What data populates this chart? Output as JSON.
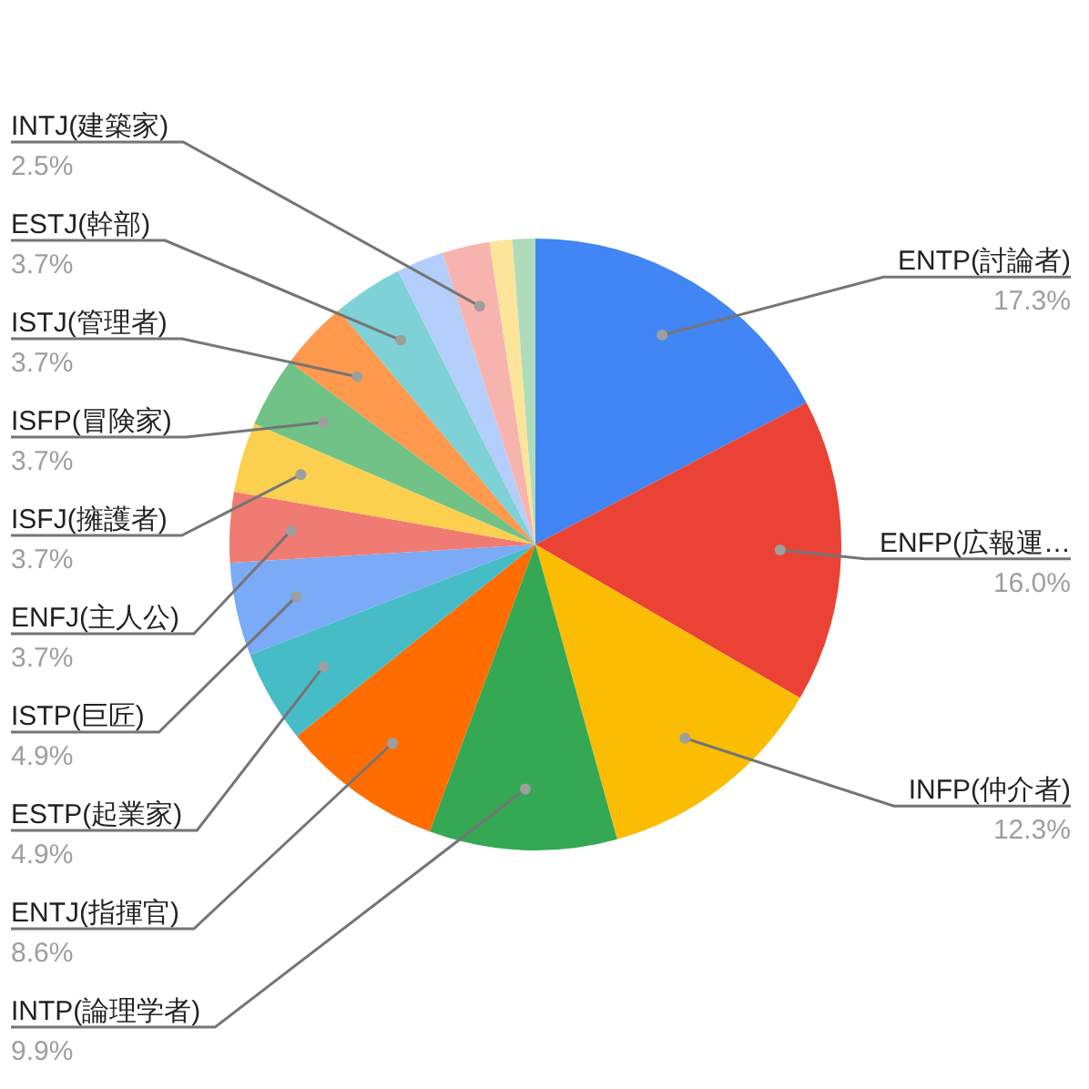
{
  "chart_data": {
    "type": "pie",
    "categories": [
      "ENTP(討論者)",
      "ENFP(広報運…",
      "INFP(仲介者)",
      "INTP(論理学者)",
      "ENTJ(指揮官)",
      "ESTP(起業家)",
      "ISTP(巨匠)",
      "ENFJ(主人公)",
      "ISFJ(擁護者)",
      "ISFP(冒険家)",
      "ISTJ(管理者)",
      "ESTJ(幹部)",
      null,
      "INTJ(建築家)",
      null,
      null
    ],
    "values": [
      17.3,
      16.0,
      12.3,
      9.9,
      8.6,
      4.9,
      4.9,
      3.7,
      3.7,
      3.7,
      3.7,
      3.7,
      2.5,
      2.5,
      1.2,
      1.2
    ],
    "colors": [
      "#4285f4",
      "#ea4335",
      "#fbbc04",
      "#34a853",
      "#ff6d01",
      "#46bdc6",
      "#7baaf7",
      "#f07b72",
      "#fcd04f",
      "#71c287",
      "#ff994d",
      "#7ed1d7",
      "#b3cefb",
      "#f7b4ae",
      "#fde49b",
      "#aedcba"
    ],
    "value_labels": [
      "17.3%",
      "16.0%",
      "12.3%",
      "9.9%",
      "8.6%",
      "4.9%",
      "4.9%",
      "3.7%",
      "3.7%",
      "3.7%",
      "3.7%",
      "3.7%",
      null,
      "2.5%",
      null,
      null
    ],
    "legend": false
  }
}
